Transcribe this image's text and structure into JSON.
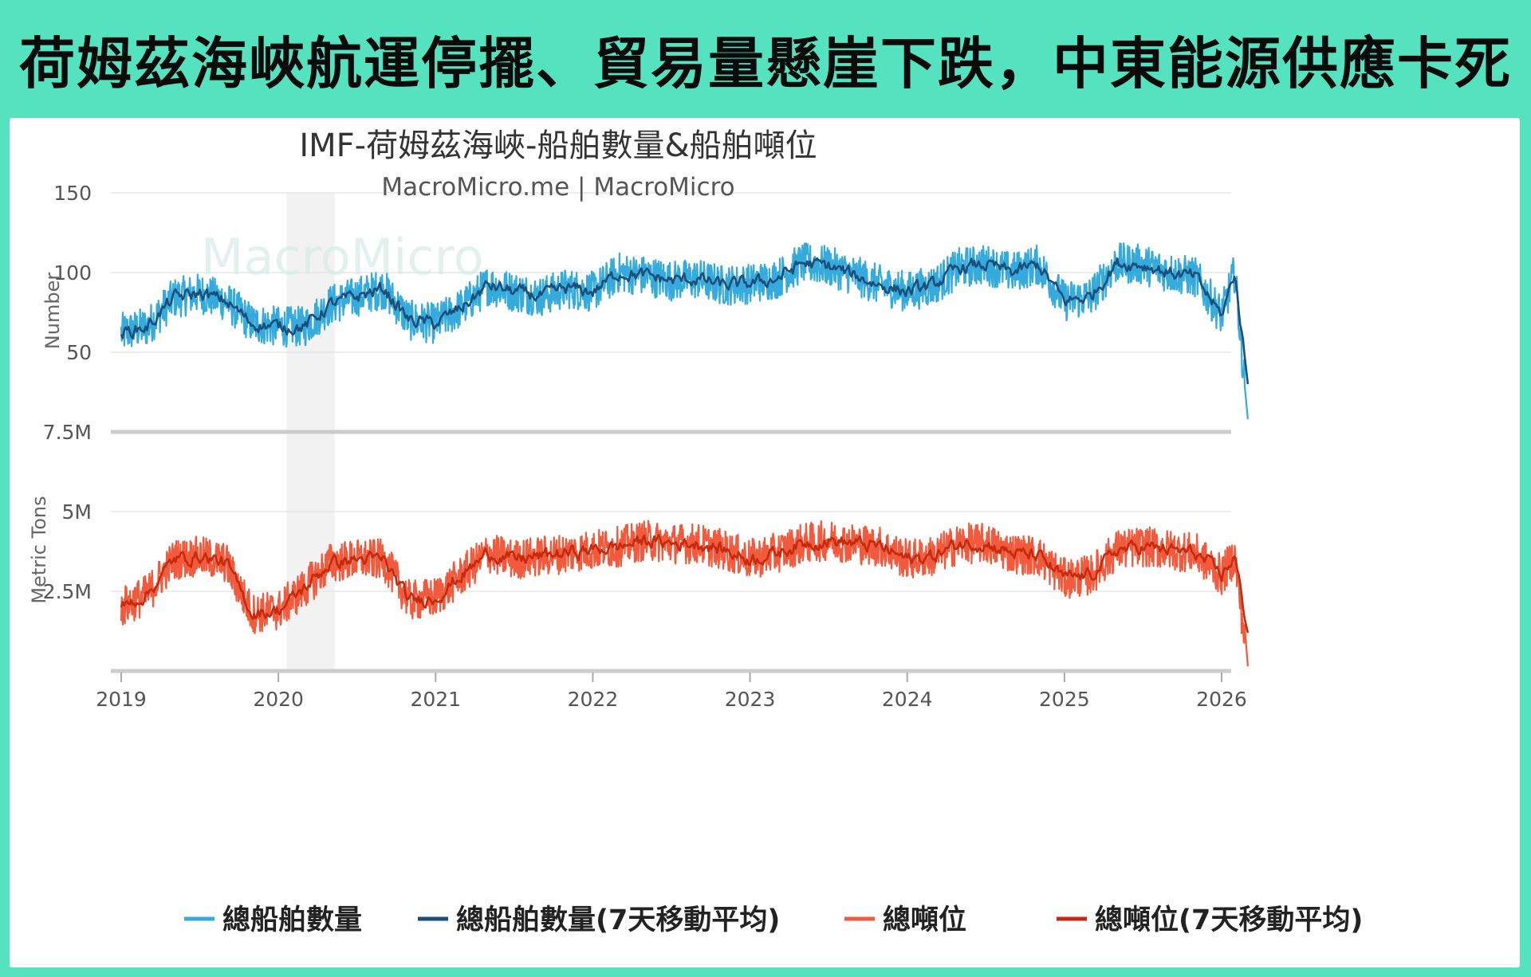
{
  "headline": "荷姆茲海峽航運停擺、貿易量懸崖下跌，中東能源供應卡死",
  "chart_data": {
    "type": "line",
    "title": "IMF-荷姆茲海峽-船舶數量&船舶噸位",
    "subtitle": "MacroMicro.me | MacroMicro",
    "watermark": "MacroMicro",
    "x_ticks": [
      "2019",
      "2020",
      "2021",
      "2022",
      "2023",
      "2024",
      "2025",
      "2026"
    ],
    "x_range": [
      "2019-01-01",
      "2026-03-10"
    ],
    "shaded_band": [
      "2020-01-20",
      "2020-05-10"
    ],
    "panels": [
      {
        "ylabel": "Number",
        "yticks": [
          "150",
          "100",
          "50"
        ],
        "ylim": [
          0,
          150
        ],
        "series": [
          "總船舶數量",
          "總船舶數量(7天移動平均)"
        ]
      },
      {
        "ylabel": "Metric Tons",
        "yticks": [
          "7.5M",
          "5M",
          "2.5M"
        ],
        "ylim": [
          0,
          7500000
        ],
        "series": [
          "總噸位",
          "總噸位(7天移動平均)"
        ]
      }
    ],
    "series": [
      {
        "name": "總船舶數量",
        "color": "#35aadc",
        "panel": 0,
        "kind": "daily",
        "x": [
          "2019-01",
          "2019-03",
          "2019-05",
          "2019-07",
          "2019-09",
          "2019-11",
          "2020-01",
          "2020-03",
          "2020-05",
          "2020-07",
          "2020-09",
          "2020-11",
          "2021-01",
          "2021-03",
          "2021-05",
          "2021-07",
          "2021-09",
          "2021-11",
          "2022-01",
          "2022-03",
          "2022-05",
          "2022-07",
          "2022-09",
          "2022-11",
          "2023-01",
          "2023-03",
          "2023-05",
          "2023-07",
          "2023-09",
          "2023-11",
          "2024-01",
          "2024-03",
          "2024-05",
          "2024-07",
          "2024-09",
          "2024-11",
          "2025-01",
          "2025-03",
          "2025-05",
          "2025-07",
          "2025-09",
          "2025-11",
          "2026-01",
          "2026-02",
          "2026-03"
        ],
        "values": [
          62,
          66,
          84,
          87,
          82,
          68,
          66,
          66,
          80,
          85,
          90,
          70,
          68,
          78,
          92,
          88,
          85,
          90,
          88,
          100,
          98,
          95,
          96,
          92,
          93,
          96,
          106,
          104,
          98,
          92,
          88,
          92,
          103,
          105,
          100,
          105,
          82,
          85,
          106,
          105,
          100,
          97,
          73,
          100,
          8
        ]
      },
      {
        "name": "總船舶數量(7天移動平均)",
        "color": "#1a4f7c",
        "panel": 0,
        "kind": "smooth",
        "x": [
          "2019-01",
          "2019-03",
          "2019-05",
          "2019-07",
          "2019-09",
          "2019-11",
          "2020-01",
          "2020-03",
          "2020-05",
          "2020-07",
          "2020-09",
          "2020-11",
          "2021-01",
          "2021-03",
          "2021-05",
          "2021-07",
          "2021-09",
          "2021-11",
          "2022-01",
          "2022-03",
          "2022-05",
          "2022-07",
          "2022-09",
          "2022-11",
          "2023-01",
          "2023-03",
          "2023-05",
          "2023-07",
          "2023-09",
          "2023-11",
          "2024-01",
          "2024-03",
          "2024-05",
          "2024-07",
          "2024-09",
          "2024-11",
          "2025-01",
          "2025-03",
          "2025-05",
          "2025-07",
          "2025-09",
          "2025-11",
          "2026-01",
          "2026-02",
          "2026-03"
        ],
        "values": [
          62,
          66,
          84,
          87,
          82,
          68,
          66,
          66,
          80,
          85,
          90,
          70,
          68,
          78,
          92,
          88,
          85,
          90,
          88,
          100,
          98,
          95,
          96,
          92,
          93,
          96,
          106,
          104,
          98,
          92,
          88,
          92,
          103,
          105,
          100,
          105,
          82,
          85,
          106,
          105,
          100,
          97,
          73,
          100,
          30
        ]
      },
      {
        "name": "總噸位",
        "color": "#f25a3d",
        "panel": 1,
        "kind": "daily",
        "x": [
          "2019-01",
          "2019-03",
          "2019-05",
          "2019-07",
          "2019-09",
          "2019-11",
          "2020-01",
          "2020-03",
          "2020-05",
          "2020-07",
          "2020-09",
          "2020-11",
          "2021-01",
          "2021-03",
          "2021-05",
          "2021-07",
          "2021-09",
          "2021-11",
          "2022-01",
          "2022-03",
          "2022-05",
          "2022-07",
          "2022-09",
          "2022-11",
          "2023-01",
          "2023-03",
          "2023-05",
          "2023-07",
          "2023-09",
          "2023-11",
          "2024-01",
          "2024-03",
          "2024-05",
          "2024-07",
          "2024-09",
          "2024-11",
          "2025-01",
          "2025-03",
          "2025-05",
          "2025-07",
          "2025-09",
          "2025-11",
          "2026-01",
          "2026-02",
          "2026-03"
        ],
        "values": [
          2000000,
          2400000,
          3500000,
          3600000,
          3400000,
          1800000,
          1900000,
          2600000,
          3400000,
          3500000,
          3500000,
          2200000,
          2300000,
          3000000,
          3700000,
          3500000,
          3600000,
          3700000,
          3800000,
          3900000,
          4100000,
          4000000,
          4000000,
          3800000,
          3500000,
          3700000,
          4000000,
          4100000,
          4000000,
          3900000,
          3500000,
          3600000,
          4000000,
          4000000,
          3700000,
          3600000,
          2900000,
          3000000,
          3800000,
          3900000,
          3800000,
          3700000,
          3000000,
          3600000,
          150000
        ]
      },
      {
        "name": "總噸位(7天移動平均)",
        "color": "#c52a0c",
        "panel": 1,
        "kind": "smooth",
        "x": [
          "2019-01",
          "2019-03",
          "2019-05",
          "2019-07",
          "2019-09",
          "2019-11",
          "2020-01",
          "2020-03",
          "2020-05",
          "2020-07",
          "2020-09",
          "2020-11",
          "2021-01",
          "2021-03",
          "2021-05",
          "2021-07",
          "2021-09",
          "2021-11",
          "2022-01",
          "2022-03",
          "2022-05",
          "2022-07",
          "2022-09",
          "2022-11",
          "2023-01",
          "2023-03",
          "2023-05",
          "2023-07",
          "2023-09",
          "2023-11",
          "2024-01",
          "2024-03",
          "2024-05",
          "2024-07",
          "2024-09",
          "2024-11",
          "2025-01",
          "2025-03",
          "2025-05",
          "2025-07",
          "2025-09",
          "2025-11",
          "2026-01",
          "2026-02",
          "2026-03"
        ],
        "values": [
          2000000,
          2400000,
          3500000,
          3600000,
          3400000,
          1800000,
          1900000,
          2600000,
          3400000,
          3500000,
          3500000,
          2200000,
          2300000,
          3000000,
          3700000,
          3500000,
          3600000,
          3700000,
          3800000,
          3900000,
          4100000,
          4000000,
          4000000,
          3800000,
          3500000,
          3700000,
          4000000,
          4100000,
          4000000,
          3900000,
          3500000,
          3600000,
          4000000,
          4000000,
          3700000,
          3600000,
          2900000,
          3000000,
          3800000,
          3900000,
          3800000,
          3700000,
          3000000,
          3600000,
          1200000
        ]
      }
    ],
    "legend": [
      "總船舶數量",
      "總船舶數量(7天移動平均)",
      "總噸位",
      "總噸位(7天移動平均)"
    ],
    "legend_position": "bottom"
  }
}
